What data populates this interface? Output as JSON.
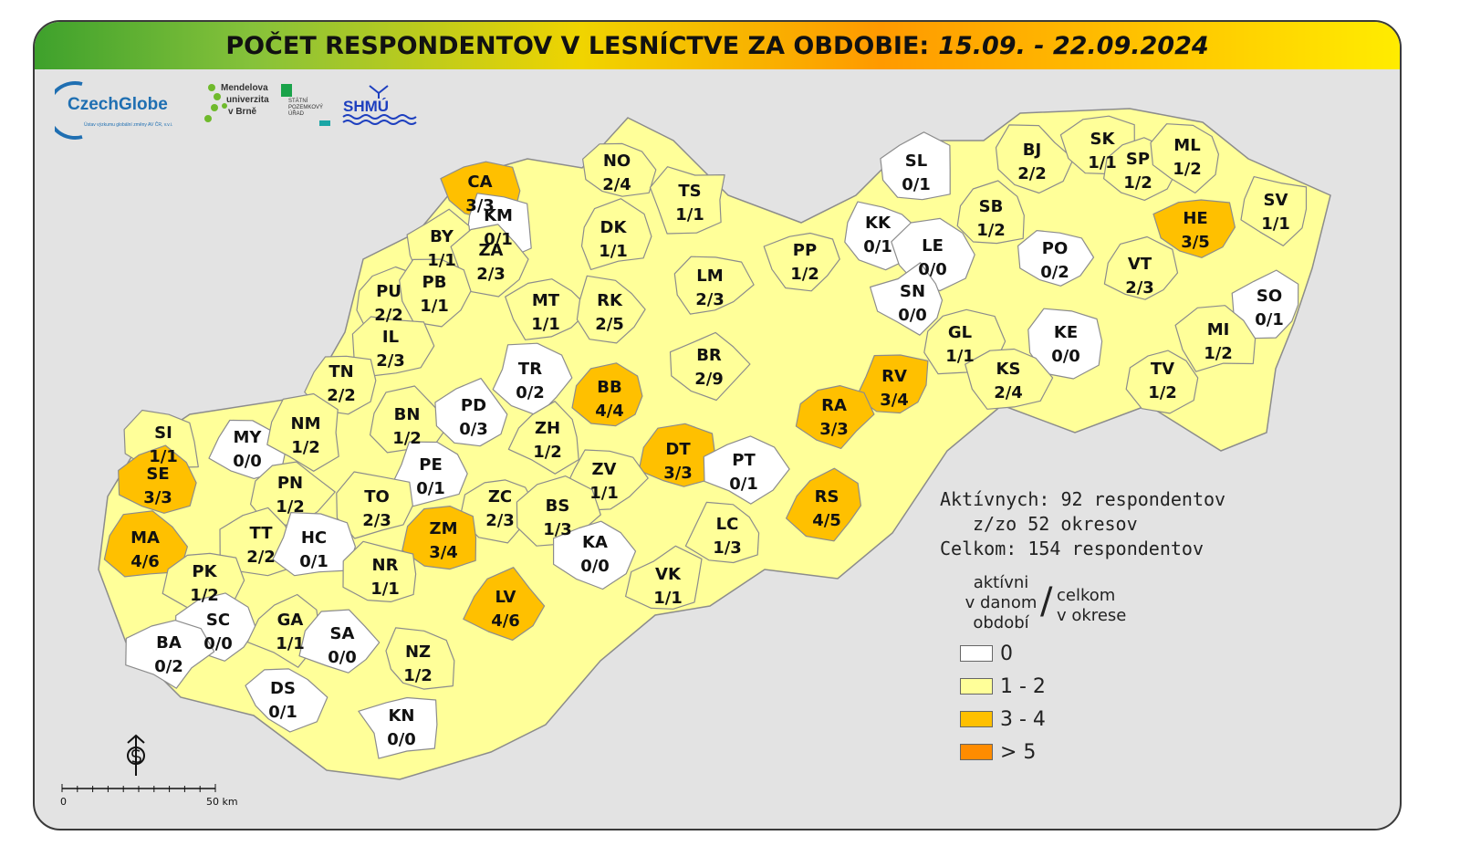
{
  "title": {
    "main": "POČET RESPONDENTOV V LESNÍCTVE ZA OBDOBIE:",
    "date": "15.09. - 22.09.2024"
  },
  "logos": {
    "czechglobe": "CzechGlobe",
    "czechglobe_sub": "Ústav výzkumu globální změny AV ČR, v.v.i.",
    "mendel": [
      "Mendelova",
      "univerzita",
      "v Brně"
    ],
    "spu": [
      "STÁTNÍ",
      "POZEMKOVÝ",
      "ÚŘAD"
    ],
    "shmu": "SHMÚ"
  },
  "colors": {
    "class_0": "#ffffff",
    "class_1_2": "#ffff99",
    "class_3_4": "#ffc000",
    "class_gt5": "#ff8c00"
  },
  "districts": [
    {
      "code": "CA",
      "active": 3,
      "total": 3
    },
    {
      "code": "KM",
      "active": 0,
      "total": 1
    },
    {
      "code": "NO",
      "active": 2,
      "total": 4
    },
    {
      "code": "TS",
      "active": 1,
      "total": 1
    },
    {
      "code": "DK",
      "active": 1,
      "total": 1
    },
    {
      "code": "BY",
      "active": 1,
      "total": 1
    },
    {
      "code": "ZA",
      "active": 2,
      "total": 3
    },
    {
      "code": "PU",
      "active": 2,
      "total": 2
    },
    {
      "code": "PB",
      "active": 1,
      "total": 1
    },
    {
      "code": "MT",
      "active": 1,
      "total": 1
    },
    {
      "code": "RK",
      "active": 2,
      "total": 5
    },
    {
      "code": "LM",
      "active": 2,
      "total": 3
    },
    {
      "code": "PP",
      "active": 1,
      "total": 2
    },
    {
      "code": "KK",
      "active": 0,
      "total": 1
    },
    {
      "code": "SL",
      "active": 0,
      "total": 1
    },
    {
      "code": "LE",
      "active": 0,
      "total": 0
    },
    {
      "code": "SB",
      "active": 1,
      "total": 2
    },
    {
      "code": "BJ",
      "active": 2,
      "total": 2
    },
    {
      "code": "SK",
      "active": 1,
      "total": 1
    },
    {
      "code": "SP",
      "active": 1,
      "total": 2
    },
    {
      "code": "ML",
      "active": 1,
      "total": 2
    },
    {
      "code": "HE",
      "active": 3,
      "total": 5
    },
    {
      "code": "SV",
      "active": 1,
      "total": 1
    },
    {
      "code": "PO",
      "active": 0,
      "total": 2
    },
    {
      "code": "SN",
      "active": 0,
      "total": 0
    },
    {
      "code": "VT",
      "active": 2,
      "total": 3
    },
    {
      "code": "SO",
      "active": 0,
      "total": 1
    },
    {
      "code": "MI",
      "active": 1,
      "total": 2
    },
    {
      "code": "GL",
      "active": 1,
      "total": 1
    },
    {
      "code": "KE",
      "active": 0,
      "total": 0
    },
    {
      "code": "KS",
      "active": 2,
      "total": 4
    },
    {
      "code": "TV",
      "active": 1,
      "total": 2
    },
    {
      "code": "IL",
      "active": 2,
      "total": 3
    },
    {
      "code": "TN",
      "active": 2,
      "total": 2
    },
    {
      "code": "BN",
      "active": 1,
      "total": 2
    },
    {
      "code": "PD",
      "active": 0,
      "total": 3
    },
    {
      "code": "TR",
      "active": 0,
      "total": 2
    },
    {
      "code": "BB",
      "active": 4,
      "total": 4
    },
    {
      "code": "BR",
      "active": 2,
      "total": 9
    },
    {
      "code": "RV",
      "active": 3,
      "total": 4
    },
    {
      "code": "RA",
      "active": 3,
      "total": 3
    },
    {
      "code": "SI",
      "active": 1,
      "total": 1
    },
    {
      "code": "MY",
      "active": 0,
      "total": 0
    },
    {
      "code": "NM",
      "active": 1,
      "total": 2
    },
    {
      "code": "SE",
      "active": 3,
      "total": 3
    },
    {
      "code": "ZH",
      "active": 1,
      "total": 2
    },
    {
      "code": "DT",
      "active": 3,
      "total": 3
    },
    {
      "code": "PT",
      "active": 0,
      "total": 1
    },
    {
      "code": "PE",
      "active": 0,
      "total": 1
    },
    {
      "code": "PN",
      "active": 1,
      "total": 2
    },
    {
      "code": "TO",
      "active": 2,
      "total": 3
    },
    {
      "code": "ZV",
      "active": 1,
      "total": 1
    },
    {
      "code": "ZC",
      "active": 2,
      "total": 3
    },
    {
      "code": "BS",
      "active": 1,
      "total": 3
    },
    {
      "code": "RS",
      "active": 4,
      "total": 5
    },
    {
      "code": "MA",
      "active": 4,
      "total": 6
    },
    {
      "code": "TT",
      "active": 2,
      "total": 2
    },
    {
      "code": "HC",
      "active": 0,
      "total": 1
    },
    {
      "code": "ZM",
      "active": 3,
      "total": 4
    },
    {
      "code": "KA",
      "active": 0,
      "total": 0
    },
    {
      "code": "LC",
      "active": 1,
      "total": 3
    },
    {
      "code": "PK",
      "active": 1,
      "total": 2
    },
    {
      "code": "NR",
      "active": 1,
      "total": 1
    },
    {
      "code": "LV",
      "active": 4,
      "total": 6
    },
    {
      "code": "VK",
      "active": 1,
      "total": 1
    },
    {
      "code": "SC",
      "active": 0,
      "total": 0
    },
    {
      "code": "GA",
      "active": 1,
      "total": 1
    },
    {
      "code": "SA",
      "active": 0,
      "total": 0
    },
    {
      "code": "BA",
      "active": 0,
      "total": 2
    },
    {
      "code": "NZ",
      "active": 1,
      "total": 2
    },
    {
      "code": "DS",
      "active": 0,
      "total": 1
    },
    {
      "code": "KN",
      "active": 0,
      "total": 0
    }
  ],
  "stats": {
    "line1": "Aktívnych: 92 respondentov",
    "line2": "z/zo 52 okresov",
    "line3": "Celkom: 154 respondentov"
  },
  "legend": {
    "left": [
      "aktívni",
      "v danom",
      "období"
    ],
    "slash": "/",
    "right": [
      "celkom",
      "v okrese"
    ],
    "items": [
      {
        "label": "0",
        "color": "#ffffff"
      },
      {
        "label": "1 - 2",
        "color": "#ffff99"
      },
      {
        "label": "3 - 4",
        "color": "#ffc000"
      },
      {
        "label": "> 5",
        "color": "#ff8c00"
      }
    ]
  },
  "scalebar": {
    "zero": "0",
    "end": "50 km"
  }
}
